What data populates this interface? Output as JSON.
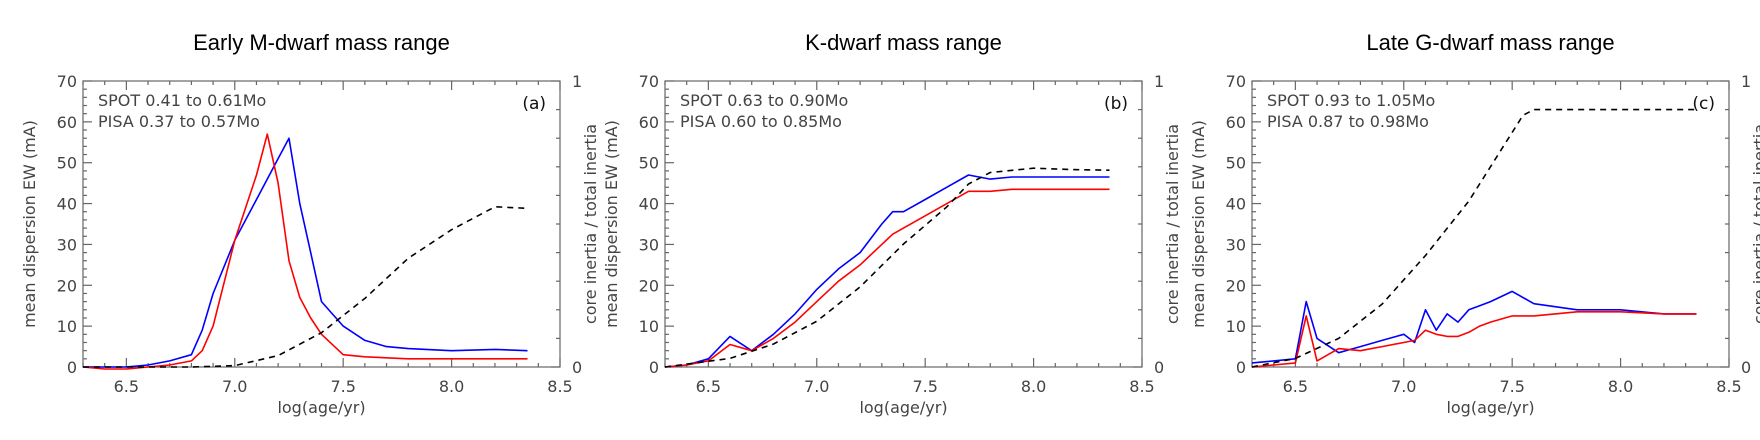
{
  "chart_data": [
    {
      "type": "line",
      "title": "Early M-dwarf mass range",
      "xlabel": "log(age/yr)",
      "ylabel": "mean dispersion EW (mA)",
      "y2label": "core inertia / total inertia",
      "xlim": [
        6.3,
        8.5
      ],
      "ylim": [
        0,
        70
      ],
      "y2lim": [
        0,
        1
      ],
      "xticks": [
        "6.5",
        "7.0",
        "7.5",
        "8.0",
        "8.5"
      ],
      "yticks": [
        "0",
        "10",
        "20",
        "30",
        "40",
        "50",
        "60",
        "70"
      ],
      "y2ticks": [
        "0",
        "1"
      ],
      "annotations": [
        "SPOT 0.41 to 0.61Mo",
        "PISA 0.37 to 0.57Mo"
      ],
      "panel_label": "(a)",
      "series": [
        {
          "name": "SPOT",
          "color": "#0000ff",
          "axis": "left",
          "x": [
            6.3,
            6.4,
            6.5,
            6.6,
            6.7,
            6.8,
            6.85,
            6.9,
            7.0,
            7.1,
            7.2,
            7.25,
            7.3,
            7.35,
            7.4,
            7.5,
            7.6,
            7.7,
            7.8,
            8.0,
            8.2,
            8.35
          ],
          "y": [
            0,
            0,
            0,
            0.5,
            1.5,
            3,
            9,
            18,
            31,
            41,
            51,
            56,
            40,
            28,
            16,
            10,
            6.5,
            5,
            4.5,
            4,
            4.3,
            4
          ]
        },
        {
          "name": "PISA",
          "color": "#ff0000",
          "axis": "left",
          "x": [
            6.3,
            6.4,
            6.5,
            6.6,
            6.7,
            6.8,
            6.85,
            6.9,
            7.0,
            7.1,
            7.15,
            7.2,
            7.25,
            7.3,
            7.35,
            7.4,
            7.5,
            7.6,
            7.8,
            8.0,
            8.2,
            8.35
          ],
          "y": [
            0,
            -0.5,
            -0.5,
            0,
            0.5,
            1.5,
            4,
            10,
            31,
            47,
            57,
            45,
            26,
            17,
            12,
            8,
            3,
            2.5,
            2,
            2,
            2,
            2
          ]
        },
        {
          "name": "core inertia / total inertia",
          "color": "#000000",
          "axis": "right",
          "dash": true,
          "x": [
            6.3,
            6.6,
            6.8,
            7.0,
            7.2,
            7.4,
            7.6,
            7.8,
            8.0,
            8.2,
            8.35
          ],
          "y": [
            0,
            0,
            0,
            0.005,
            0.04,
            0.12,
            0.24,
            0.38,
            0.48,
            0.56,
            0.555
          ]
        }
      ]
    },
    {
      "type": "line",
      "title": "K-dwarf mass range",
      "xlabel": "log(age/yr)",
      "ylabel": "mean dispersion EW (mA)",
      "y2label": "core inertia / total inertia",
      "xlim": [
        6.3,
        8.5
      ],
      "ylim": [
        0,
        70
      ],
      "y2lim": [
        0,
        1
      ],
      "xticks": [
        "6.5",
        "7.0",
        "7.5",
        "8.0",
        "8.5"
      ],
      "yticks": [
        "0",
        "10",
        "20",
        "30",
        "40",
        "50",
        "60",
        "70"
      ],
      "y2ticks": [
        "0",
        "1"
      ],
      "annotations": [
        "SPOT 0.63 to 0.90Mo",
        "PISA 0.60 to 0.85Mo"
      ],
      "panel_label": "(b)",
      "series": [
        {
          "name": "SPOT",
          "color": "#0000ff",
          "axis": "left",
          "x": [
            6.3,
            6.4,
            6.5,
            6.6,
            6.7,
            6.8,
            6.9,
            7.0,
            7.1,
            7.2,
            7.3,
            7.35,
            7.4,
            7.5,
            7.6,
            7.7,
            7.8,
            7.9,
            8.0,
            8.2,
            8.35
          ],
          "y": [
            0,
            0.5,
            2,
            7.5,
            4,
            8,
            13,
            19,
            24,
            28,
            35,
            38,
            38,
            41,
            44,
            47,
            46,
            46.5,
            46.5,
            46.5,
            46.5
          ]
        },
        {
          "name": "PISA",
          "color": "#ff0000",
          "axis": "left",
          "x": [
            6.3,
            6.4,
            6.5,
            6.6,
            6.7,
            6.8,
            6.9,
            7.0,
            7.1,
            7.2,
            7.3,
            7.35,
            7.4,
            7.5,
            7.6,
            7.7,
            7.8,
            7.9,
            8.0,
            8.2,
            8.35
          ],
          "y": [
            0,
            0.5,
            1.5,
            5.5,
            4,
            7,
            11,
            16,
            21,
            25,
            30,
            32.5,
            34,
            37,
            40,
            43,
            43,
            43.5,
            43.5,
            43.5,
            43.5
          ]
        },
        {
          "name": "core inertia / total inertia",
          "color": "#000000",
          "axis": "right",
          "dash": true,
          "x": [
            6.3,
            6.6,
            6.8,
            7.0,
            7.2,
            7.4,
            7.6,
            7.7,
            7.8,
            8.0,
            8.2,
            8.35
          ],
          "y": [
            0,
            0.03,
            0.08,
            0.16,
            0.28,
            0.43,
            0.56,
            0.64,
            0.68,
            0.695,
            0.69,
            0.688
          ]
        }
      ]
    },
    {
      "type": "line",
      "title": "Late G-dwarf mass range",
      "xlabel": "log(age/yr)",
      "ylabel": "mean dispersion EW (mA)",
      "y2label": "core inertia / total inertia",
      "xlim": [
        6.3,
        8.5
      ],
      "ylim": [
        0,
        70
      ],
      "y2lim": [
        0,
        1
      ],
      "xticks": [
        "6.5",
        "7.0",
        "7.5",
        "8.0",
        "8.5"
      ],
      "yticks": [
        "0",
        "10",
        "20",
        "30",
        "40",
        "50",
        "60",
        "70"
      ],
      "y2ticks": [
        "0",
        "1"
      ],
      "annotations": [
        "SPOT 0.93 to 1.05Mo",
        "PISA 0.87 to 0.98Mo"
      ],
      "panel_label": "(c)",
      "series": [
        {
          "name": "SPOT",
          "color": "#0000ff",
          "axis": "left",
          "x": [
            6.3,
            6.4,
            6.5,
            6.55,
            6.6,
            6.7,
            6.8,
            6.9,
            7.0,
            7.05,
            7.1,
            7.15,
            7.2,
            7.25,
            7.3,
            7.35,
            7.4,
            7.5,
            7.6,
            7.8,
            8.0,
            8.2,
            8.35
          ],
          "y": [
            1,
            1.5,
            2,
            16,
            7,
            3.5,
            5,
            6.5,
            8,
            6,
            14,
            9,
            13,
            11,
            14,
            15,
            16,
            18.5,
            15.5,
            14,
            14,
            13,
            13
          ]
        },
        {
          "name": "PISA",
          "color": "#ff0000",
          "axis": "left",
          "x": [
            6.3,
            6.4,
            6.5,
            6.55,
            6.6,
            6.7,
            6.8,
            6.9,
            7.0,
            7.05,
            7.1,
            7.15,
            7.2,
            7.25,
            7.3,
            7.35,
            7.4,
            7.5,
            7.6,
            7.8,
            8.0,
            8.2,
            8.35
          ],
          "y": [
            0,
            0.5,
            1,
            12.5,
            1.5,
            4.5,
            4,
            5,
            6,
            6.5,
            9,
            8,
            7.5,
            7.5,
            8.5,
            10,
            11,
            12.5,
            12.5,
            13.5,
            13.5,
            13,
            13
          ]
        },
        {
          "name": "core inertia / total inertia",
          "color": "#000000",
          "axis": "right",
          "dash": true,
          "x": [
            6.3,
            6.5,
            6.7,
            6.9,
            7.1,
            7.3,
            7.45,
            7.55,
            7.6,
            8.0,
            8.35
          ],
          "y": [
            0,
            0.03,
            0.1,
            0.22,
            0.39,
            0.58,
            0.76,
            0.88,
            0.9,
            0.9,
            0.9
          ]
        }
      ]
    }
  ]
}
